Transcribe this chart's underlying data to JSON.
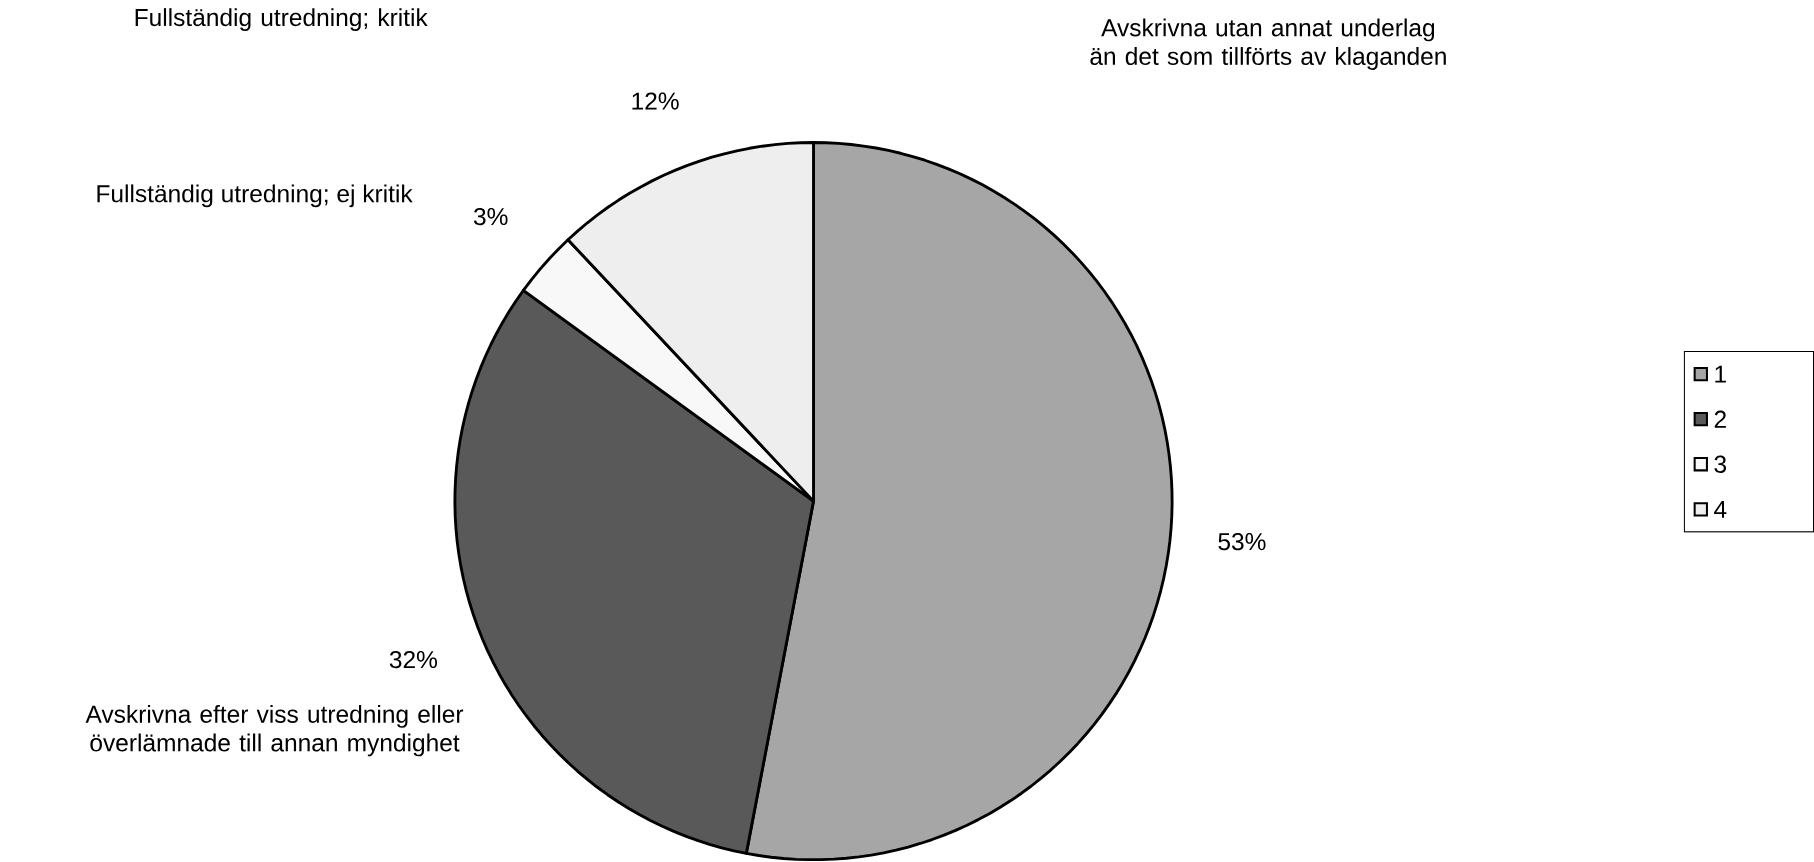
{
  "chart_data": {
    "type": "pie",
    "categories": [
      "1",
      "2",
      "3",
      "4"
    ],
    "values": [
      53,
      32,
      3,
      12
    ],
    "colors": [
      "#a6a6a6",
      "#595959",
      "#f8f8f8",
      "#eeeeee"
    ],
    "value_labels": [
      "53%",
      "32%",
      "3%",
      "12%"
    ],
    "annotations": [
      {
        "text": "Avskrivna utan annat underlag än det som tillförts av klaganden",
        "x": "1"
      },
      {
        "text": "Avskrivna efter viss utredning eller överlämnade till annan myndighet",
        "x": "2"
      },
      {
        "text": "Fullständig utredning; ej kritik",
        "x": "3"
      },
      {
        "text": "Fullständig utredning; kritik",
        "x": "4"
      }
    ],
    "legend": "right"
  }
}
